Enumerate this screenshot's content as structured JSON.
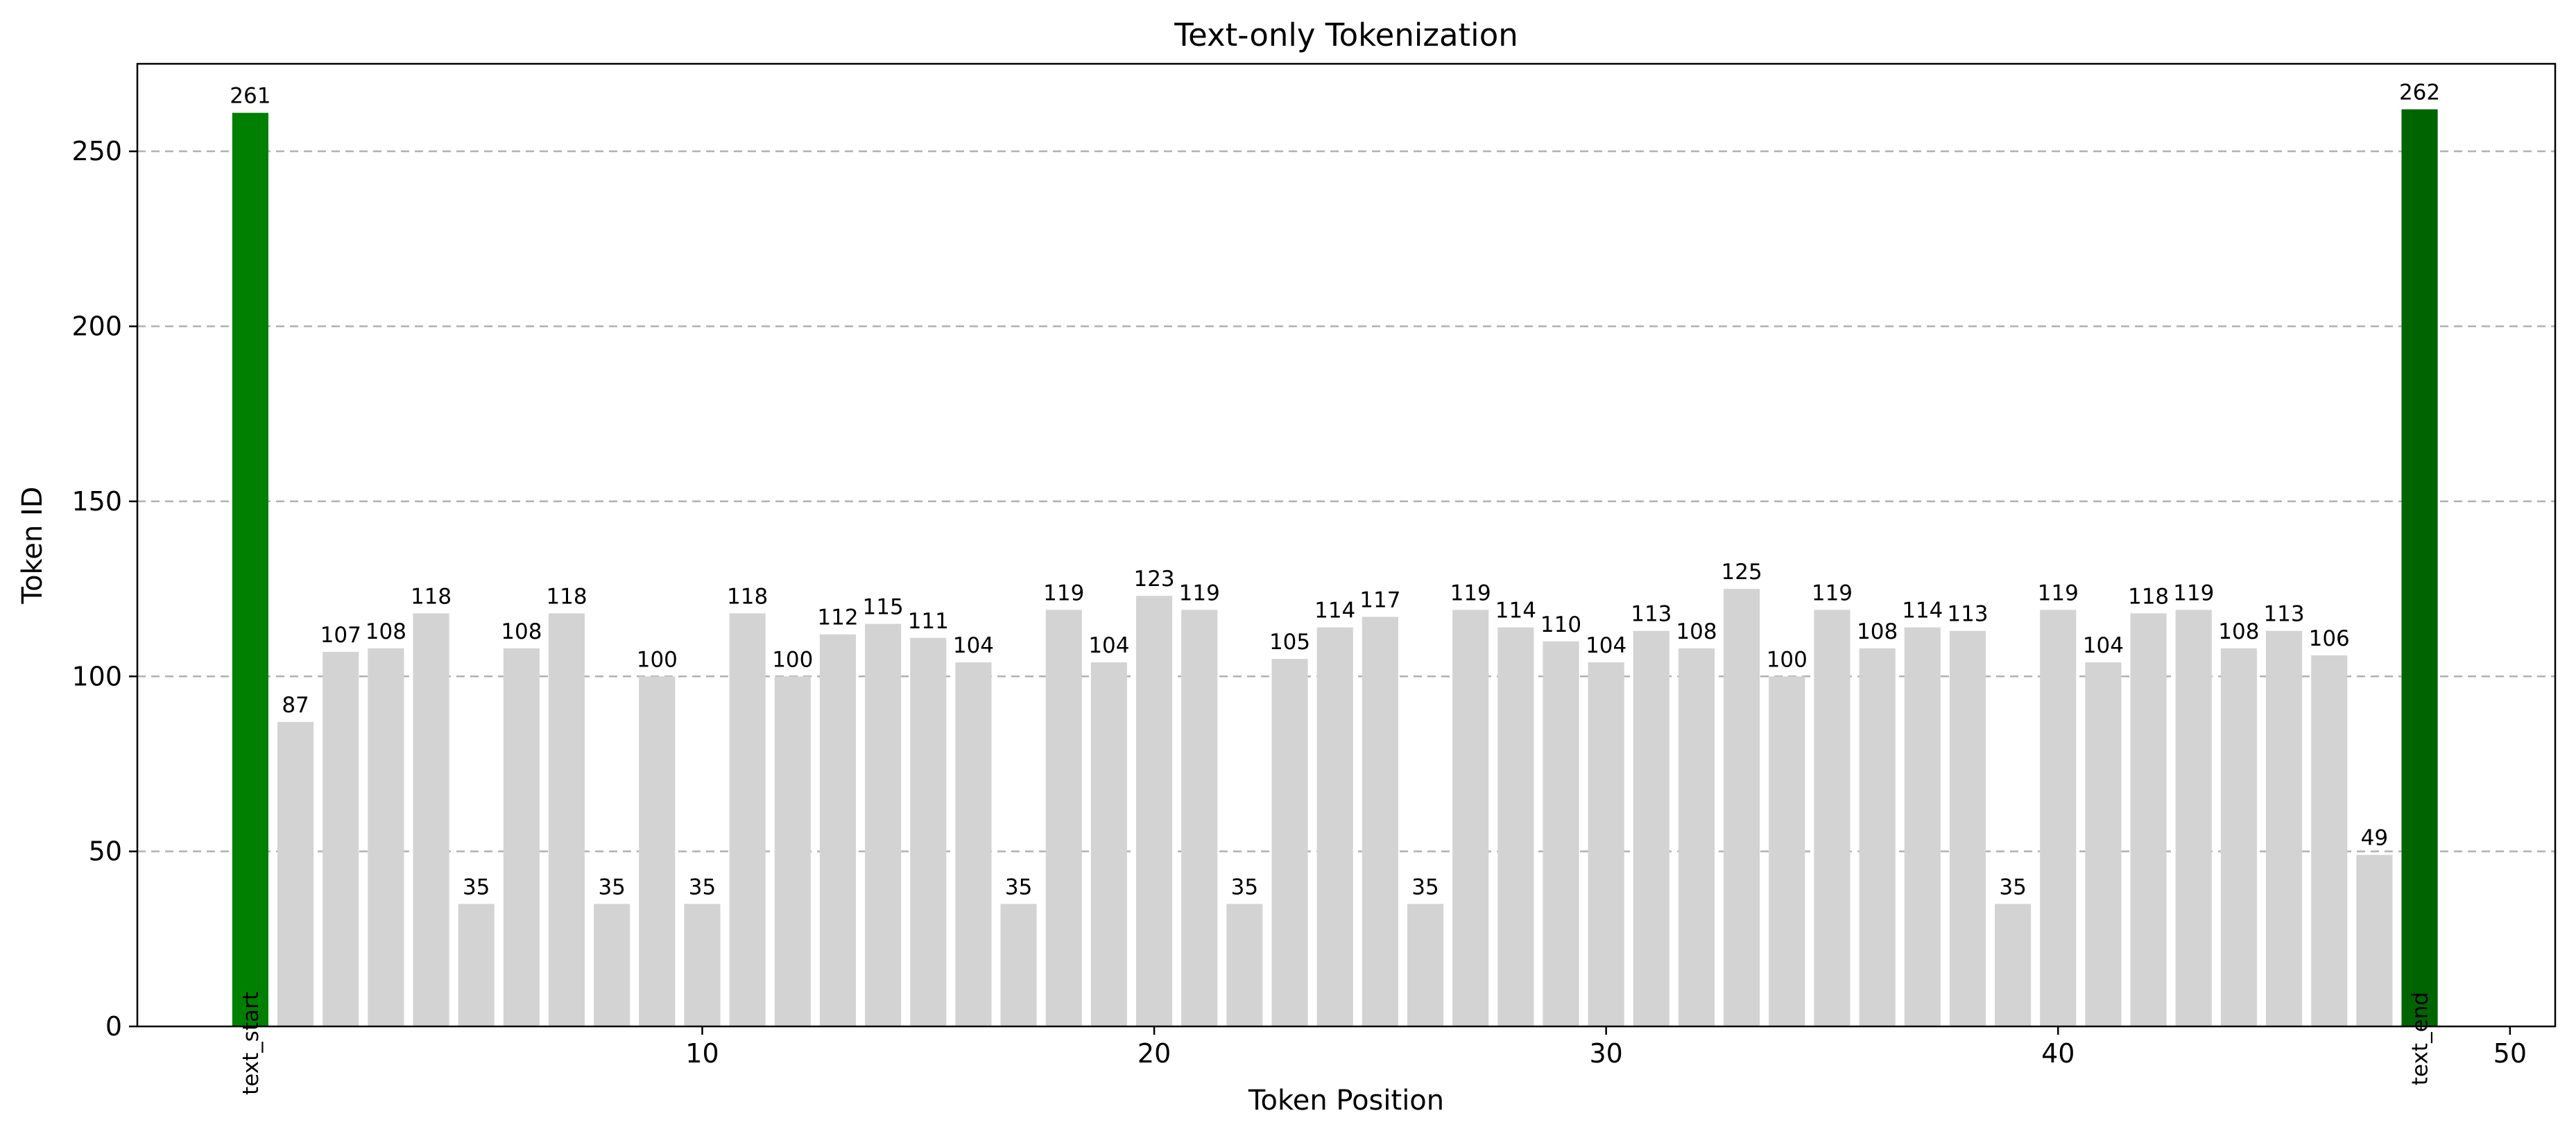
{
  "chart_data": {
    "type": "bar",
    "title": "Text-only Tokenization",
    "xlabel": "Token Position",
    "ylabel": "Token ID",
    "xlim": [
      -2.5,
      51.0
    ],
    "ylim": [
      0,
      275
    ],
    "xticks": [
      10,
      20,
      30,
      40,
      50
    ],
    "yticks": [
      0,
      50,
      100,
      150,
      200,
      250
    ],
    "grid": "y-dashed",
    "values": [
      261,
      87,
      107,
      108,
      118,
      35,
      108,
      118,
      35,
      100,
      35,
      118,
      100,
      112,
      115,
      111,
      104,
      35,
      119,
      104,
      123,
      119,
      35,
      105,
      114,
      117,
      35,
      119,
      114,
      110,
      104,
      113,
      108,
      125,
      100,
      119,
      108,
      114,
      113,
      35,
      119,
      104,
      118,
      119,
      108,
      113,
      106,
      49,
      262
    ],
    "colors": {
      "default": "#d3d3d3",
      "start": "#008000",
      "end": "#006400"
    },
    "special_tokens": [
      {
        "position": 0,
        "label": "text_start"
      },
      {
        "position": 48,
        "label": "text_end"
      }
    ]
  }
}
